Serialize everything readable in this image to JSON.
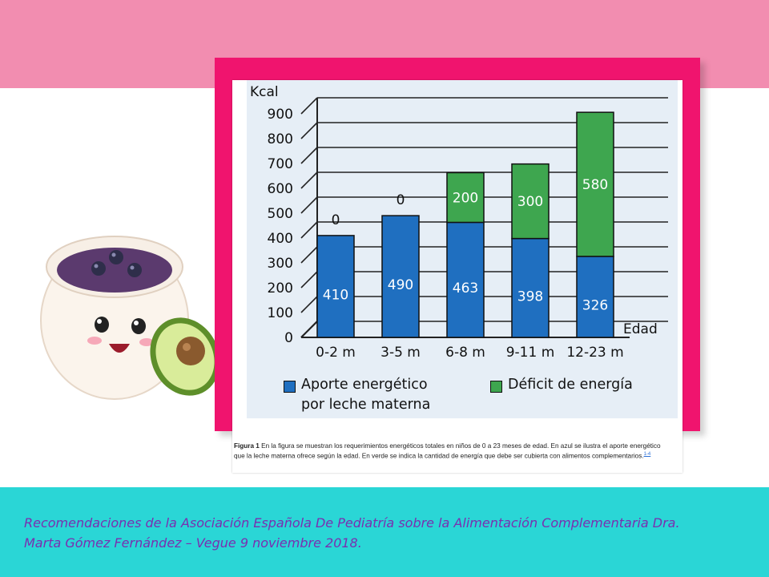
{
  "chart_data": {
    "type": "bar",
    "stacked": true,
    "categories": [
      "0-2 m",
      "3-5 m",
      "6-8 m",
      "9-11 m",
      "12-23 m"
    ],
    "series": [
      {
        "name": "Aporte energético por leche materna",
        "color": "#1f6fc0",
        "values": [
          410,
          490,
          463,
          398,
          326
        ]
      },
      {
        "name": "Déficit de energía",
        "color": "#3ea64f",
        "values": [
          0,
          0,
          200,
          300,
          580
        ]
      }
    ],
    "ylabel": "Kcal",
    "xlabel": "Edad",
    "ylim": [
      0,
      900
    ],
    "yticks": [
      0,
      100,
      200,
      300,
      400,
      500,
      600,
      700,
      800,
      900
    ],
    "grid": true,
    "legend_position": "bottom"
  },
  "legend": {
    "blue_line1": "Aporte energético",
    "blue_line2": "por leche materna",
    "green": "Déficit de energía"
  },
  "caption": {
    "label": "Figura 1",
    "text": " En la figura se muestran los requerimientos energéticos totales en niños de 0 a 23 meses de edad. En azul se ilustra el aporte energético que la leche materna ofrece según la edad. En verde se indica la cantidad de energía que debe ser cubierta con alimentos complementarios.",
    "refs": "1-4"
  },
  "citation": {
    "line1": "Recomendaciones de la Asociación Española De Pediatría sobre la Alimentación Complementaria Dra.",
    "line2": "Marta Gómez Fernández – Vegue 9 noviembre 2018."
  },
  "colors": {
    "top_band": "#f28db0",
    "bottom_band": "#2ad6d6",
    "frame": "#f0146e",
    "citation_text": "#7a2fb0"
  }
}
